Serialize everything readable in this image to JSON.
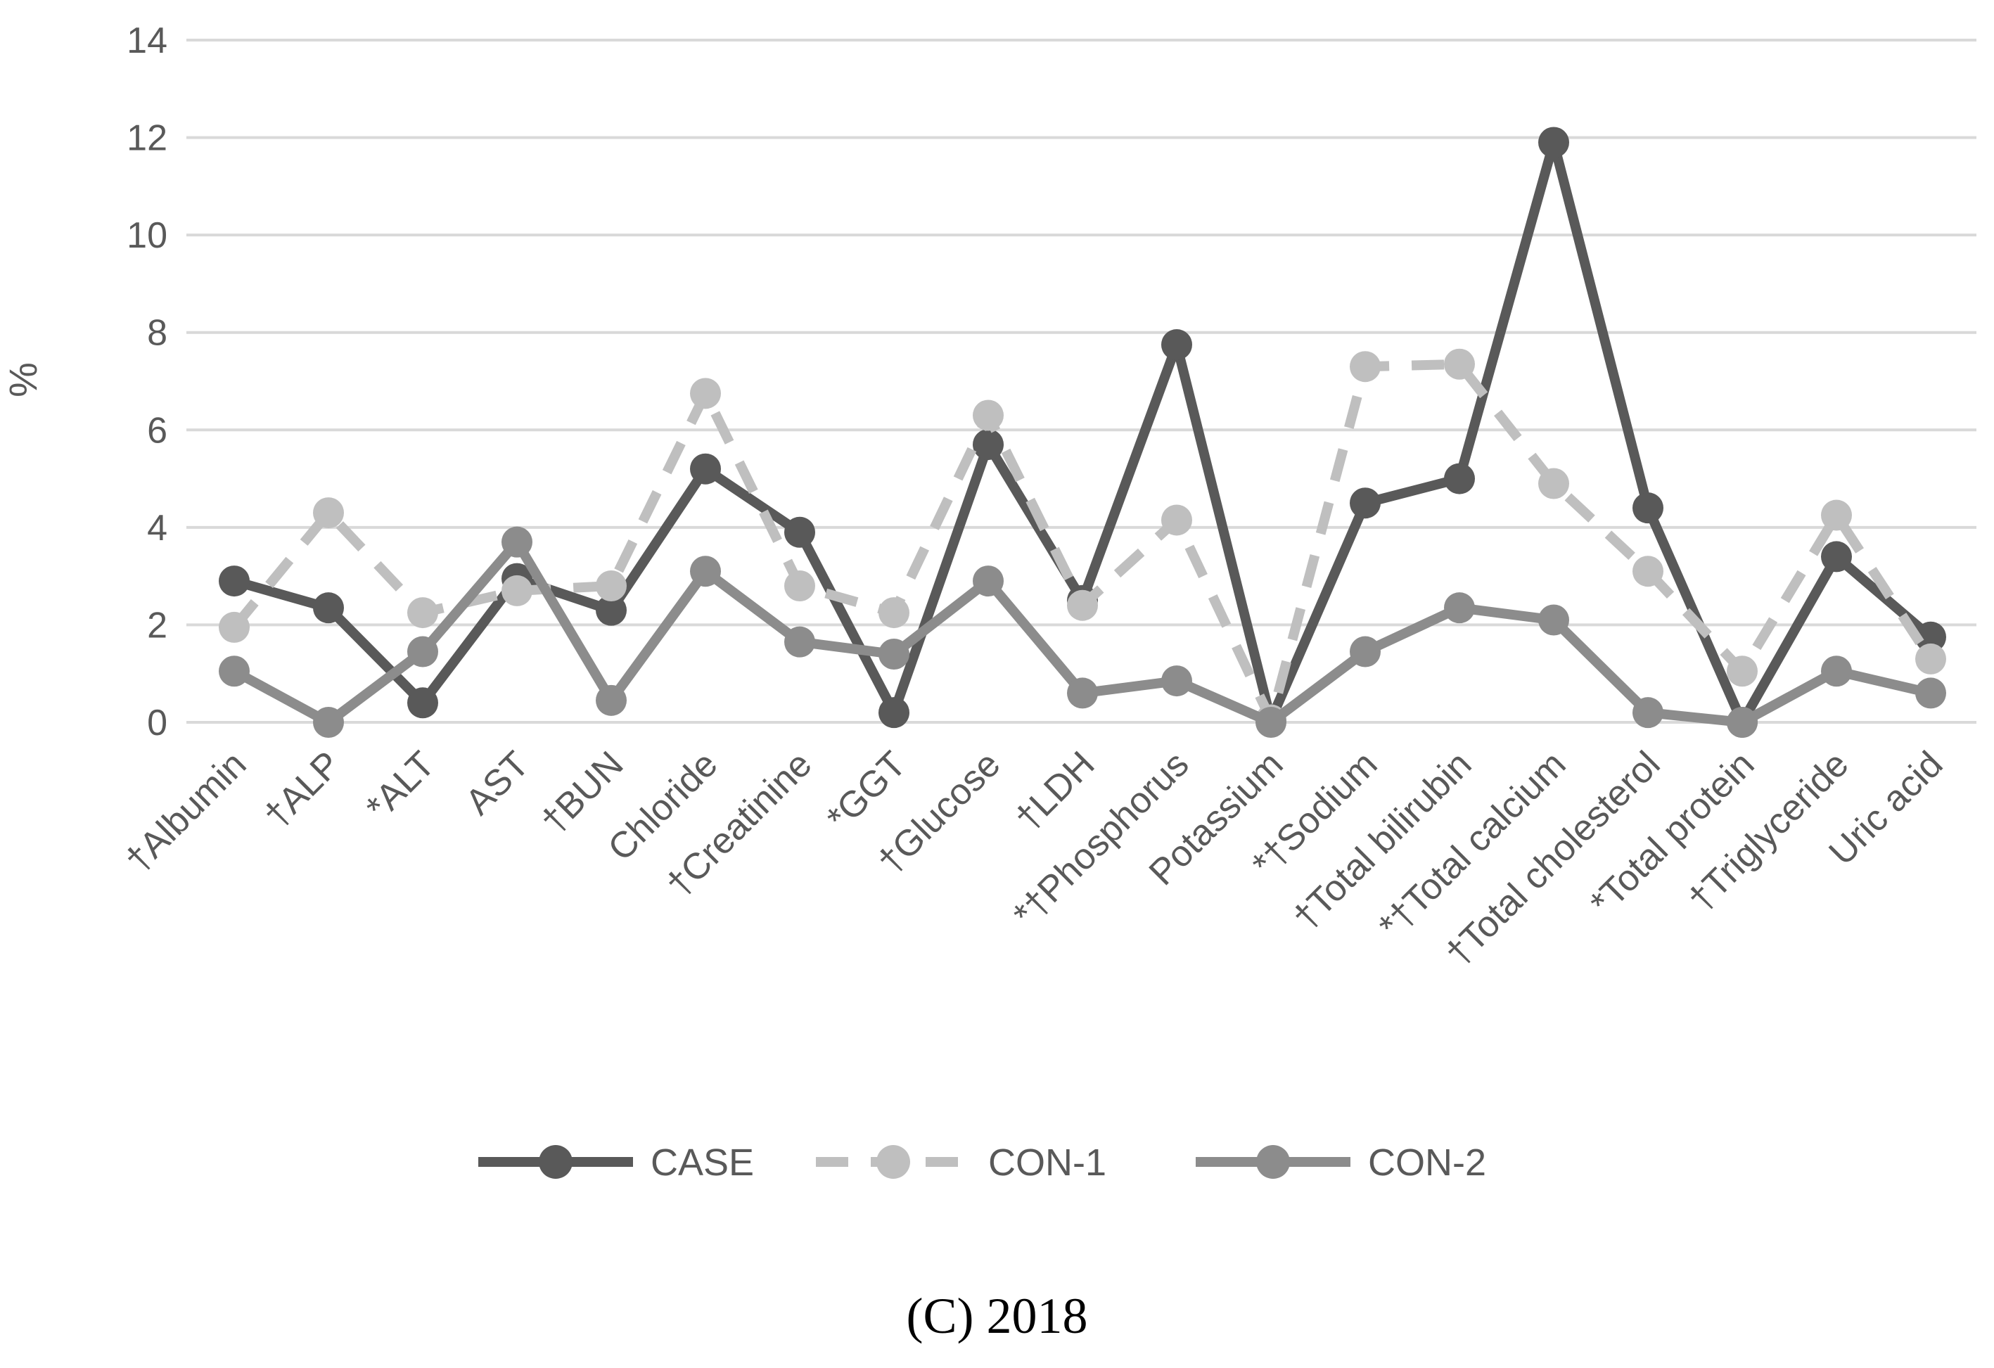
{
  "caption": "(C) 2018",
  "chart_data": {
    "type": "line",
    "title": "",
    "xlabel": "",
    "ylabel": "%",
    "ylim": [
      0,
      14
    ],
    "yticks": [
      "0",
      "2",
      "4",
      "6",
      "8",
      "10",
      "12",
      "14"
    ],
    "grid": true,
    "legend_position": "bottom",
    "categories": [
      "†Albumin",
      "†ALP",
      "*ALT",
      "AST",
      "†BUN",
      "Chloride",
      "†Creatinine",
      "*GGT",
      "†Glucose",
      "†LDH",
      "*†Phosphorus",
      "Potassium",
      "*†Sodium",
      "†Total bilirubin",
      "*†Total calcium",
      "†Total cholesterol",
      "*Total protein",
      "†Triglyceride",
      "Uric acid"
    ],
    "series": [
      {
        "name": "CASE",
        "color": "#595959",
        "dashed": false,
        "values": [
          2.9,
          2.35,
          0.4,
          2.95,
          2.3,
          5.2,
          3.9,
          0.2,
          5.7,
          2.5,
          7.75,
          0.05,
          4.5,
          5.0,
          11.9,
          4.4,
          0.0,
          3.4,
          1.75
        ]
      },
      {
        "name": "CON-1",
        "color": "#bfbfbf",
        "dashed": true,
        "values": [
          1.95,
          4.3,
          2.25,
          2.7,
          2.8,
          6.75,
          2.8,
          2.25,
          6.3,
          2.4,
          4.15,
          0.05,
          7.3,
          7.35,
          4.9,
          3.1,
          1.05,
          4.25,
          1.3
        ]
      },
      {
        "name": "CON-2",
        "color": "#8c8c8c",
        "dashed": false,
        "values": [
          1.05,
          0.0,
          1.45,
          3.7,
          0.45,
          3.1,
          1.65,
          1.4,
          2.9,
          0.6,
          0.85,
          0.0,
          1.45,
          2.35,
          2.1,
          0.2,
          0.0,
          1.05,
          0.6
        ]
      }
    ]
  }
}
